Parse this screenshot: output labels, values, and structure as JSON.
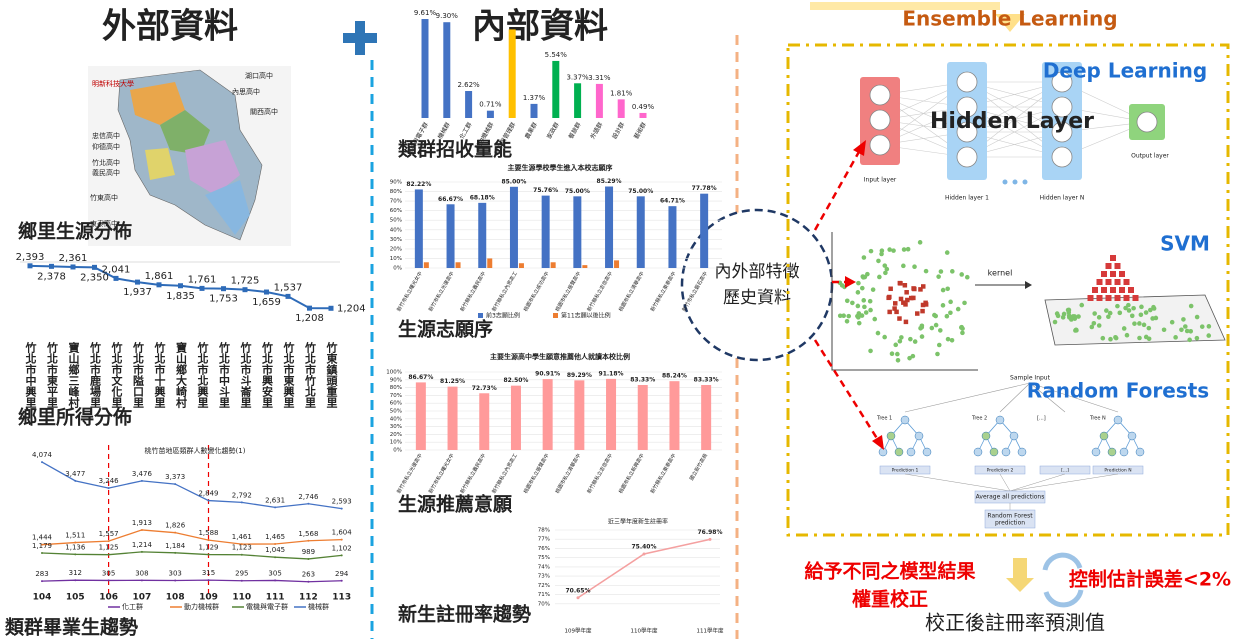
{
  "headings": {
    "external": "外部資料",
    "internal": "內部資料"
  },
  "map": {
    "labels": [
      "明新科技大學",
      "湖口高中",
      "內思高中",
      "關西高中",
      "忠信高中",
      "仰德高中",
      "竹北高中",
      "義民高中",
      "竹東高中",
      "東泰高中"
    ],
    "caption": "鄉里生源分佈"
  },
  "chart_data": [
    {
      "type": "line",
      "caption": "鄉里所得分佈",
      "categories": [
        "竹北市中興里",
        "竹北市東平里",
        "寶山鄉三峰村",
        "竹北市鹿場里",
        "竹北市文化里",
        "竹北市隘口里",
        "竹北市十興里",
        "寶山鄉大崎村",
        "竹北市北興里",
        "竹北市中斗里",
        "竹北市斗崙里",
        "竹北市興安里",
        "竹北市東興里",
        "竹北市竹北里",
        "竹東鎮頭重里"
      ],
      "values": [
        2393,
        2378,
        2361,
        2350,
        2041,
        1937,
        1861,
        1835,
        1761,
        1753,
        1725,
        1659,
        1537,
        1208,
        1204
      ],
      "value_labels": [
        "2,393",
        "2,378",
        "2,361",
        "2,350",
        "2,041",
        "1,937",
        "1,861",
        "1,835",
        "1,761",
        "1,753",
        "1,725",
        "1,659",
        "1,537",
        "1,208",
        "1,204"
      ],
      "color": "#2e6bb8",
      "ylim": [
        1100,
        2500
      ]
    },
    {
      "type": "line",
      "title": "桃竹苗地區類群人數變化趨勢(1)",
      "caption": "類群畢業生趨勢",
      "categories": [
        "104",
        "105",
        "106",
        "107",
        "108",
        "109",
        "110",
        "111",
        "112",
        "113"
      ],
      "series": [
        {
          "name": "化工群",
          "color": "#7030a0",
          "values": [
            283,
            312,
            305,
            308,
            303,
            315,
            295,
            305,
            263,
            294
          ],
          "value_labels": [
            "283",
            "312",
            "305",
            "308",
            "303",
            "315",
            "295",
            "305",
            "263",
            "294"
          ]
        },
        {
          "name": "動力機械群",
          "color": "#ed7d31",
          "values": [
            1444,
            1511,
            1557,
            1913,
            1826,
            1588,
            1461,
            1465,
            1568,
            1604
          ],
          "value_labels": [
            "1,444",
            "1,511",
            "1,557",
            "1,913",
            "1,826",
            "1,588",
            "1,461",
            "1,465",
            "1,568",
            "1,604"
          ]
        },
        {
          "name": "電機與電子群",
          "color": "#548235",
          "values": [
            1179,
            1136,
            1125,
            1214,
            1184,
            1129,
            1123,
            1045,
            989,
            1102
          ],
          "value_labels": [
            "1,179",
            "1,136",
            "1,125",
            "1,214",
            "1,184",
            "1,129",
            "1,123",
            "1,045",
            "989",
            "1,102"
          ]
        },
        {
          "name": "機械群",
          "color": "#4472c4",
          "values": [
            4074,
            3477,
            3246,
            3476,
            3373,
            2849,
            2792,
            2631,
            2746,
            2593
          ],
          "value_labels": [
            "4,074",
            "3,477",
            "3,246",
            "3,476",
            "3,373",
            "2,849",
            "2,792",
            "2,631",
            "2,746",
            "2,593"
          ]
        }
      ],
      "ylim": [
        0,
        4300
      ]
    },
    {
      "type": "bar",
      "caption": "類群招收量能",
      "categories": [
        "電機與電子群",
        "機械群",
        "化工群",
        "動力機械群",
        "商業與管理群",
        "農業群",
        "家政群",
        "餐旅群",
        "外語群",
        "設計群",
        "藝術群"
      ],
      "values": [
        9.61,
        9.3,
        2.62,
        0.71,
        8.6,
        1.37,
        5.54,
        3.37,
        3.31,
        1.81,
        0.49
      ],
      "value_labels": [
        "9.61%",
        "9.30%",
        "2.62%",
        "0.71%",
        null,
        "1.37%",
        "5.54%",
        "3.37%",
        "3.31%",
        "1.81%",
        "0.49%"
      ],
      "colors": [
        "#4472c4",
        "#4472c4",
        "#4472c4",
        "#4472c4",
        "#ffc000",
        "#4472c4",
        "#00b050",
        "#00b050",
        "#ff66cc",
        "#ff66cc",
        "#ff66cc"
      ],
      "ylim": [
        0,
        10
      ]
    },
    {
      "type": "bar",
      "title": "主要生源學校學生進入本校志願序",
      "caption": "生源志願序",
      "categories": [
        "新竹市私立曙光女中",
        "新竹市私立光復高中",
        "新竹縣私立義民高中",
        "新竹縣私立內思高工",
        "桃園市私立成功高中",
        "桃園市私立振聲高中",
        "新竹縣私立忠信高中",
        "桃園市私立清華高中",
        "新竹縣私立東泰高中",
        "新竹市私立磐石高中"
      ],
      "series": [
        {
          "name": "前3志願比例",
          "color": "#4472c4",
          "values": [
            82.22,
            66.67,
            68.18,
            85.0,
            75.76,
            75.0,
            85.29,
            75.0,
            64.71,
            77.78
          ],
          "value_labels": [
            "82.22%",
            "66.67%",
            "68.18%",
            "85.00%",
            "75.76%",
            "75.00%",
            "85.29%",
            "75.00%",
            "64.71%",
            "77.78%"
          ]
        },
        {
          "name": "第11志願以後比例",
          "color": "#ed7d31",
          "values": [
            6,
            6,
            10,
            5,
            6,
            3,
            8,
            0,
            0,
            0
          ]
        }
      ],
      "ylim": [
        0,
        90
      ],
      "yticks": [
        {
          "value": 0,
          "label": "0%"
        },
        {
          "value": 10,
          "label": "10%"
        },
        {
          "value": 20,
          "label": "20%"
        },
        {
          "value": 30,
          "label": "30%"
        },
        {
          "value": 40,
          "label": "40%"
        },
        {
          "value": 50,
          "label": "50%"
        },
        {
          "value": 60,
          "label": "60%"
        },
        {
          "value": 70,
          "label": "70%"
        },
        {
          "value": 80,
          "label": "80%"
        },
        {
          "value": 90,
          "label": "90%"
        }
      ],
      "grid": true
    },
    {
      "type": "bar",
      "title": "主要生源高中學生願意推薦他人就讀本校比例",
      "caption": "生源推薦意願",
      "categories": [
        "新竹市私立光復高中",
        "新竹市私立曙光女中",
        "新竹縣私立義民高中",
        "新竹縣私立內思高工",
        "桃園市私立振聲高中",
        "桃園市私立清華高中",
        "新竹縣私立忠信高中",
        "桃園市私立新興高中",
        "新竹縣私立東泰高中",
        "國立新竹高商"
      ],
      "values": [
        86.67,
        81.25,
        72.73,
        82.5,
        90.91,
        89.29,
        91.18,
        83.33,
        88.24,
        83.33
      ],
      "value_labels": [
        "86.67%",
        "81.25%",
        "72.73%",
        "82.50%",
        "90.91%",
        "89.29%",
        "91.18%",
        "83.33%",
        "88.24%",
        "83.33%"
      ],
      "color": "#ff9a9a",
      "ylim": [
        0,
        100
      ],
      "yticks": [
        {
          "value": 0,
          "label": "0%"
        },
        {
          "value": 10,
          "label": "10%"
        },
        {
          "value": 20,
          "label": "20%"
        },
        {
          "value": 30,
          "label": "30%"
        },
        {
          "value": 40,
          "label": "40%"
        },
        {
          "value": 50,
          "label": "50%"
        },
        {
          "value": 60,
          "label": "60%"
        },
        {
          "value": 70,
          "label": "70%"
        },
        {
          "value": 80,
          "label": "80%"
        },
        {
          "value": 90,
          "label": "90%"
        },
        {
          "value": 100,
          "label": "100%"
        }
      ],
      "grid": true
    },
    {
      "type": "line",
      "title": "近三學年度新生註冊率",
      "caption": "新生註冊率趨勢",
      "categories": [
        "109學年度",
        "110學年度",
        "111學年度"
      ],
      "values": [
        70.65,
        75.4,
        76.98
      ],
      "value_labels": [
        "70.65%",
        "75.40%",
        "76.98%"
      ],
      "color": "#f4a0a0",
      "ylim": [
        69,
        78
      ],
      "yticks": [
        {
          "value": 70,
          "label": "70%"
        },
        {
          "value": 71,
          "label": "71%"
        },
        {
          "value": 72,
          "label": "72%"
        },
        {
          "value": 73,
          "label": "73%"
        },
        {
          "value": 74,
          "label": "74%"
        },
        {
          "value": 75,
          "label": "75%"
        },
        {
          "value": 76,
          "label": "76%"
        },
        {
          "value": 77,
          "label": "77%"
        },
        {
          "value": 78,
          "label": "78%"
        }
      ],
      "grid": true
    }
  ],
  "center": {
    "lines": [
      "內外部特徵",
      "歷史資料"
    ]
  },
  "ensemble": {
    "title": "Ensemble Learning",
    "deep_learning": {
      "title": "Deep Learning",
      "hidden": "Hidden Layer",
      "labels": [
        "Input layer",
        "Hidden layer 1",
        "Hidden layer N",
        "Output layer"
      ]
    },
    "svm": {
      "title": "SVM",
      "kernel": "kernel"
    },
    "random_forests": {
      "title": "Random Forests",
      "sample": "Sample Input",
      "trees": [
        "Tree 1",
        "Tree 2",
        "[...]",
        "Tree N"
      ],
      "predictions": [
        "Prediction 1",
        "Prediction 2",
        "[...]",
        "Prediction N"
      ],
      "average": "Average all predictions",
      "final": [
        "Random Forest",
        "prediction"
      ]
    }
  },
  "footer": {
    "weights": [
      "給予不同之模型結果",
      "權重校正"
    ],
    "error": "控制估計誤差<2%",
    "result": "校正後註冊率預測值"
  }
}
